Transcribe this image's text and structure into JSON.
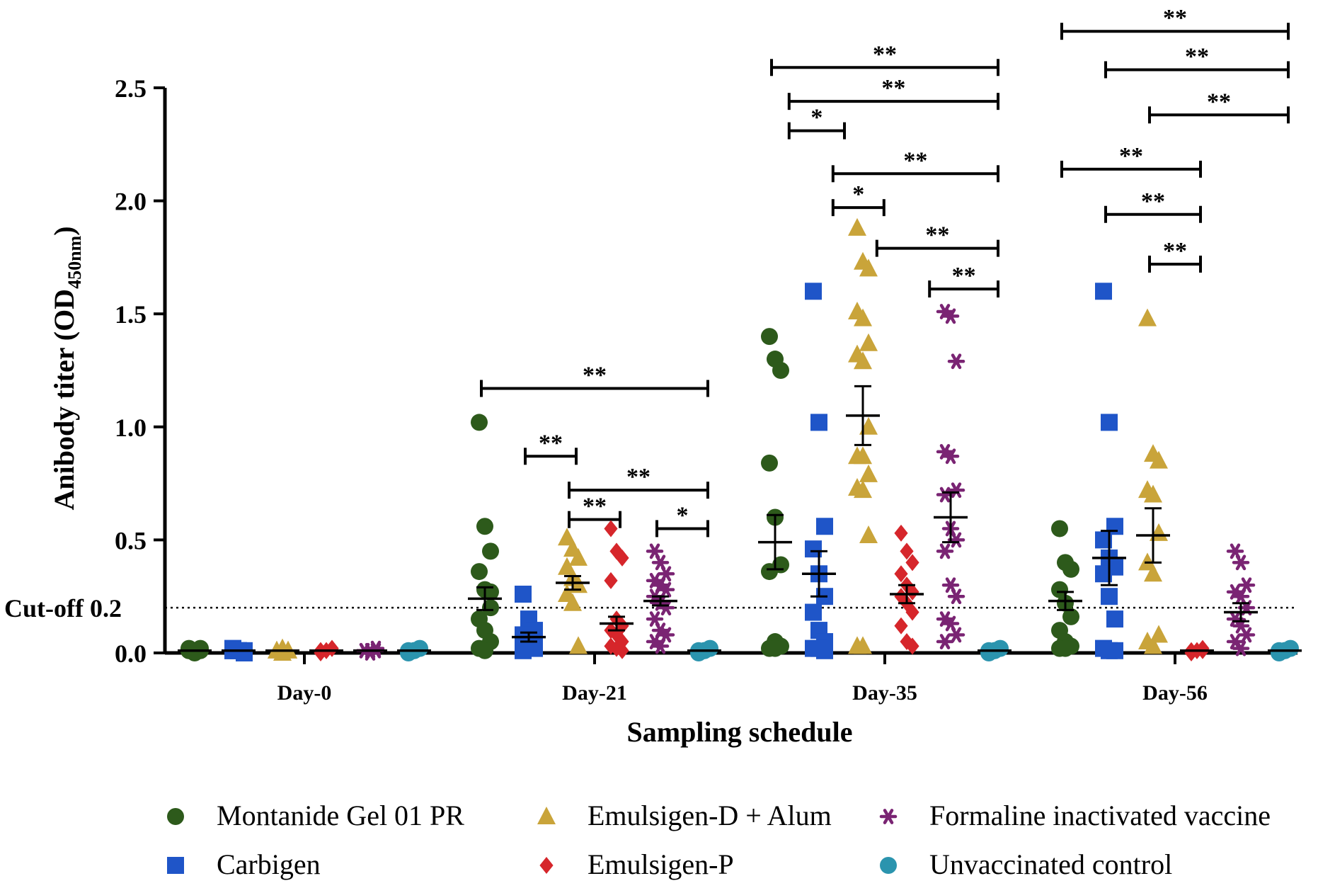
{
  "chart_data": {
    "type": "scatter",
    "title": "",
    "xlabel": "Sampling schedule",
    "ylabel": "Anibody titer (OD",
    "ylabel_subscript": "450nm",
    "ylabel_close": ")",
    "ylim": [
      0,
      2.5
    ],
    "yticks": [
      "0.0",
      "0.5",
      "1.0",
      "1.5",
      "2.0",
      "2.5"
    ],
    "cutoff": {
      "value": 0.2,
      "label": "Cut-off 0.2"
    },
    "categories": [
      "Day-0",
      "Day-21",
      "Day-35",
      "Day-56"
    ],
    "colors": {
      "Montanide Gel 01 PR": "#2d5a1b",
      "Carbigen": "#1f55c8",
      "Emulsigen-D + Alum": "#c9a43a",
      "Emulsigen-P": "#d6262b",
      "Formaline inactivated vaccine": "#7a2473",
      "Unvaccinated control": "#2b94ae"
    },
    "series": [
      {
        "name": "Montanide Gel 01 PR",
        "marker": "circle",
        "mean": [
          0.01,
          0.24,
          0.49,
          0.23
        ],
        "sem": [
          0.0,
          0.05,
          0.12,
          0.04
        ],
        "points": [
          [
            0.01,
            0.01,
            0.02,
            0.01,
            0.0,
            0.01,
            0.02,
            0.01
          ],
          [
            1.02,
            0.56,
            0.45,
            0.36,
            0.28,
            0.2,
            0.15,
            0.1,
            0.05,
            0.02,
            0.01,
            0.27
          ],
          [
            1.4,
            1.3,
            1.25,
            0.84,
            0.6,
            0.39,
            0.36,
            0.05,
            0.03,
            0.02,
            0.02
          ],
          [
            0.55,
            0.4,
            0.37,
            0.28,
            0.22,
            0.16,
            0.1,
            0.05,
            0.03,
            0.02,
            0.02
          ]
        ]
      },
      {
        "name": "Carbigen",
        "marker": "square",
        "mean": [
          0.01,
          0.07,
          0.35,
          0.42
        ],
        "sem": [
          0.0,
          0.02,
          0.1,
          0.12
        ],
        "points": [
          [
            0.01,
            0.01,
            0.01,
            0.02,
            0.01,
            0.0,
            0.01
          ],
          [
            0.26,
            0.15,
            0.1,
            0.08,
            0.06,
            0.05,
            0.04,
            0.03,
            0.02,
            0.01
          ],
          [
            1.6,
            1.02,
            0.56,
            0.46,
            0.35,
            0.25,
            0.18,
            0.1,
            0.05,
            0.02,
            0.02,
            0.01
          ],
          [
            1.6,
            1.02,
            0.56,
            0.5,
            0.42,
            0.38,
            0.35,
            0.25,
            0.15,
            0.02,
            0.01,
            0.01
          ]
        ]
      },
      {
        "name": "Emulsigen-D + Alum",
        "marker": "triangle",
        "mean": [
          0.01,
          0.31,
          1.05,
          0.52
        ],
        "sem": [
          0.0,
          0.03,
          0.13,
          0.12
        ],
        "points": [
          [
            0.01,
            0.02,
            0.01,
            0.01,
            0.0,
            0.01
          ],
          [
            0.51,
            0.46,
            0.42,
            0.38,
            0.33,
            0.3,
            0.26,
            0.22,
            0.03
          ],
          [
            1.88,
            1.73,
            1.7,
            1.51,
            1.48,
            1.37,
            1.32,
            1.29,
            1.0,
            0.87,
            0.87,
            0.79,
            0.73,
            0.72,
            0.52,
            0.03,
            0.03
          ],
          [
            1.48,
            0.88,
            0.85,
            0.72,
            0.7,
            0.53,
            0.4,
            0.35,
            0.08,
            0.05,
            0.03
          ]
        ]
      },
      {
        "name": "Emulsigen-P",
        "marker": "diamond",
        "mean": [
          0.01,
          0.13,
          0.26,
          0.01
        ],
        "sem": [
          0.0,
          0.03,
          0.04,
          0.0
        ],
        "points": [
          [
            0.01,
            0.01,
            0.02,
            0.0,
            0.01,
            0.02,
            0.01
          ],
          [
            0.55,
            0.45,
            0.42,
            0.32,
            0.15,
            0.12,
            0.1,
            0.08,
            0.05,
            0.03,
            0.02,
            0.01
          ],
          [
            0.53,
            0.45,
            0.4,
            0.35,
            0.3,
            0.27,
            0.25,
            0.22,
            0.18,
            0.12,
            0.05,
            0.03
          ],
          [
            0.01,
            0.01,
            0.02,
            0.0,
            0.01,
            0.01
          ]
        ]
      },
      {
        "name": "Formaline inactivated vaccine",
        "marker": "asterisk",
        "mean": [
          0.01,
          0.23,
          0.6,
          0.18
        ],
        "sem": [
          0.0,
          0.02,
          0.11,
          0.04
        ],
        "points": [
          [
            0.01,
            0.01,
            0.02,
            0.01,
            0.0,
            0.01
          ],
          [
            0.45,
            0.4,
            0.35,
            0.32,
            0.3,
            0.28,
            0.25,
            0.22,
            0.2,
            0.15,
            0.1,
            0.08,
            0.05,
            0.03
          ],
          [
            1.51,
            1.49,
            1.29,
            0.89,
            0.87,
            0.72,
            0.7,
            0.55,
            0.5,
            0.45,
            0.3,
            0.25,
            0.15,
            0.13,
            0.08,
            0.05
          ],
          [
            0.45,
            0.4,
            0.3,
            0.27,
            0.25,
            0.2,
            0.15,
            0.12,
            0.08,
            0.05,
            0.02
          ]
        ]
      },
      {
        "name": "Unvaccinated control",
        "marker": "circle",
        "mean": [
          0.01,
          0.01,
          0.01,
          0.01
        ],
        "sem": [
          0.0,
          0.0,
          0.0,
          0.0
        ],
        "points": [
          [
            0.01,
            0.01,
            0.02,
            0.0,
            0.01
          ],
          [
            0.01,
            0.01,
            0.02,
            0.0,
            0.01
          ],
          [
            0.01,
            0.01,
            0.02,
            0.0,
            0.01
          ],
          [
            0.01,
            0.01,
            0.02,
            0.0,
            0.01
          ]
        ]
      }
    ],
    "significance": [
      {
        "day": 1,
        "from": 0,
        "to": 5,
        "y": 1.17,
        "label": "**"
      },
      {
        "day": 1,
        "from": 1,
        "to": 2,
        "y": 0.87,
        "label": "**"
      },
      {
        "day": 1,
        "from": 2,
        "to": 5,
        "y": 0.72,
        "label": "**"
      },
      {
        "day": 1,
        "from": 2,
        "to": 3,
        "y": 0.59,
        "label": "**"
      },
      {
        "day": 1,
        "from": 4,
        "to": 5,
        "y": 0.55,
        "label": "*"
      },
      {
        "day": 2,
        "from": 0,
        "to": 5,
        "y": 2.59,
        "label": "**"
      },
      {
        "day": 2,
        "from": 0.4,
        "to": 5,
        "y": 2.44,
        "label": "**"
      },
      {
        "day": 2,
        "from": 0.4,
        "to": 1.5,
        "y": 2.31,
        "label": "*"
      },
      {
        "day": 2,
        "from": 1.4,
        "to": 5,
        "y": 2.12,
        "label": "**"
      },
      {
        "day": 2,
        "from": 1.4,
        "to": 2.4,
        "y": 1.97,
        "label": "*"
      },
      {
        "day": 2,
        "from": 2.4,
        "to": 5,
        "y": 1.79,
        "label": "**"
      },
      {
        "day": 2,
        "from": 3.6,
        "to": 5,
        "y": 1.61,
        "label": "**"
      },
      {
        "day": 3,
        "from": 0,
        "to": 5,
        "y": 2.75,
        "label": "**"
      },
      {
        "day": 3,
        "from": 1,
        "to": 5,
        "y": 2.58,
        "label": "**"
      },
      {
        "day": 3,
        "from": 2,
        "to": 5,
        "y": 2.38,
        "label": "**"
      },
      {
        "day": 3,
        "from": 0,
        "to": 3,
        "y": 2.14,
        "label": "**"
      },
      {
        "day": 3,
        "from": 1,
        "to": 3,
        "y": 1.94,
        "label": "**"
      },
      {
        "day": 3,
        "from": 2,
        "to": 3,
        "y": 1.72,
        "label": "**"
      }
    ],
    "legend": {
      "position": "bottom",
      "entries": [
        "Montanide Gel 01 PR",
        "Emulsigen-D + Alum",
        "Formaline inactivated vaccine",
        "Carbigen",
        "Emulsigen-P",
        "Unvaccinated control"
      ]
    }
  }
}
